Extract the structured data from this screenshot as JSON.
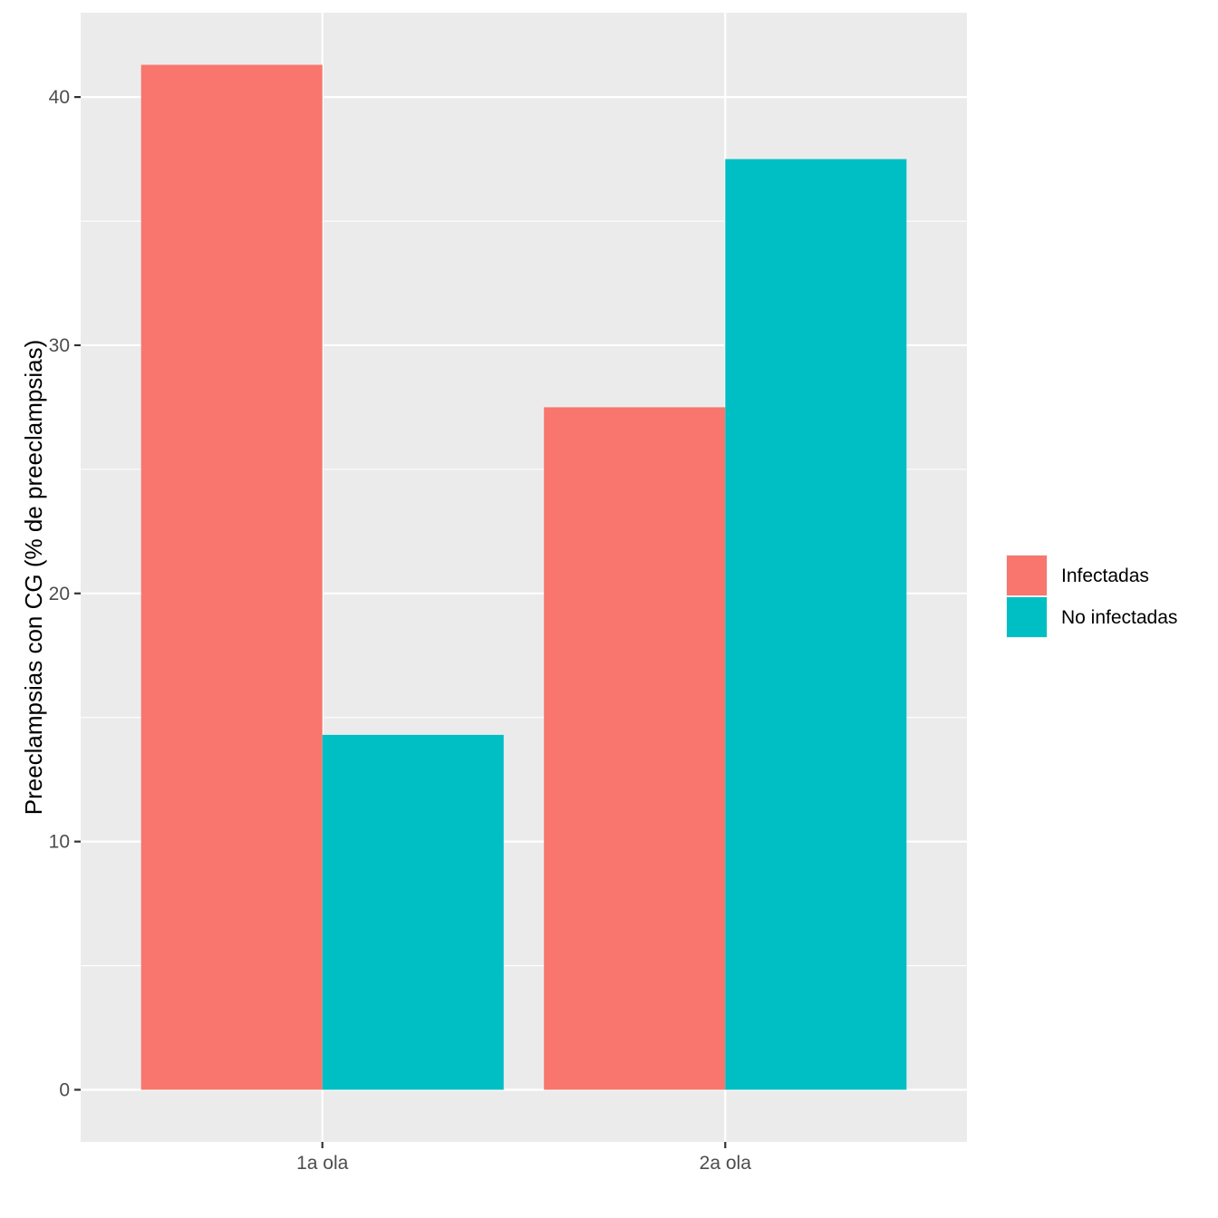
{
  "chart_data": {
    "type": "bar",
    "title": "",
    "xlabel": "",
    "ylabel": "Preeclampsias con CG (% de preeclampsias)",
    "categories": [
      "1a ola",
      "2a ola"
    ],
    "series": [
      {
        "name": "Infectadas",
        "color": "#F8766D",
        "values": [
          41.3,
          27.5
        ]
      },
      {
        "name": "No infectadas",
        "color": "#00BFC4",
        "values": [
          14.3,
          37.5
        ]
      }
    ],
    "ylim": [
      -2.1,
      43.4
    ],
    "yticks": [
      0,
      10,
      20,
      30,
      40
    ],
    "grid": true,
    "legend": "right",
    "panel_background": "#EBEBEB"
  }
}
